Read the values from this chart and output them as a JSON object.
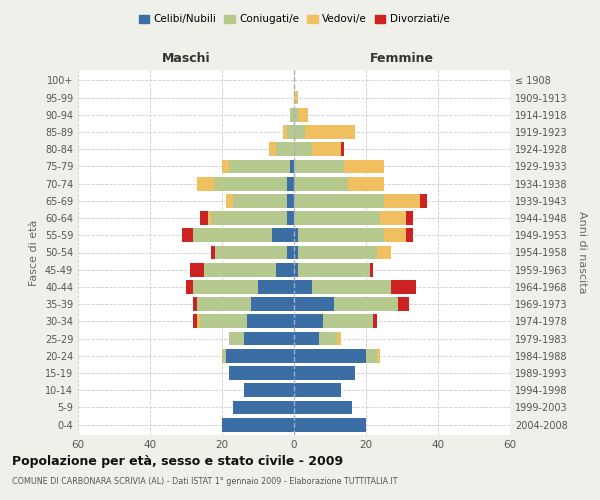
{
  "age_groups": [
    "0-4",
    "5-9",
    "10-14",
    "15-19",
    "20-24",
    "25-29",
    "30-34",
    "35-39",
    "40-44",
    "45-49",
    "50-54",
    "55-59",
    "60-64",
    "65-69",
    "70-74",
    "75-79",
    "80-84",
    "85-89",
    "90-94",
    "95-99",
    "100+"
  ],
  "birth_years": [
    "2004-2008",
    "1999-2003",
    "1994-1998",
    "1989-1993",
    "1984-1988",
    "1979-1983",
    "1974-1978",
    "1969-1973",
    "1964-1968",
    "1959-1963",
    "1954-1958",
    "1949-1953",
    "1944-1948",
    "1939-1943",
    "1934-1938",
    "1929-1933",
    "1924-1928",
    "1919-1923",
    "1914-1918",
    "1909-1913",
    "≤ 1908"
  ],
  "colors": {
    "celibi": "#3a6ea5",
    "coniugati": "#b5c98e",
    "vedovi": "#f0c060",
    "divorziati": "#cc2222"
  },
  "males": {
    "celibi": [
      20,
      17,
      14,
      18,
      19,
      14,
      13,
      12,
      10,
      5,
      2,
      6,
      2,
      2,
      2,
      1,
      0,
      0,
      0,
      0,
      0
    ],
    "coniugati": [
      0,
      0,
      0,
      0,
      1,
      4,
      13,
      15,
      18,
      20,
      20,
      22,
      21,
      15,
      20,
      17,
      5,
      2,
      1,
      0,
      0
    ],
    "vedovi": [
      0,
      0,
      0,
      0,
      0,
      0,
      1,
      0,
      0,
      0,
      0,
      0,
      1,
      2,
      5,
      2,
      2,
      1,
      0,
      0,
      0
    ],
    "divorziati": [
      0,
      0,
      0,
      0,
      0,
      0,
      1,
      1,
      2,
      4,
      1,
      3,
      2,
      0,
      0,
      0,
      0,
      0,
      0,
      0,
      0
    ]
  },
  "females": {
    "celibi": [
      20,
      16,
      13,
      17,
      20,
      7,
      8,
      11,
      5,
      1,
      1,
      1,
      0,
      0,
      0,
      0,
      0,
      0,
      0,
      0,
      0
    ],
    "coniugati": [
      0,
      0,
      0,
      0,
      3,
      5,
      14,
      18,
      22,
      20,
      22,
      24,
      24,
      25,
      15,
      14,
      5,
      3,
      1,
      0,
      0
    ],
    "vedovi": [
      0,
      0,
      0,
      0,
      1,
      1,
      0,
      0,
      0,
      0,
      4,
      6,
      7,
      10,
      10,
      11,
      8,
      14,
      3,
      1,
      0
    ],
    "divorziati": [
      0,
      0,
      0,
      0,
      0,
      0,
      1,
      3,
      7,
      1,
      0,
      2,
      2,
      2,
      0,
      0,
      1,
      0,
      0,
      0,
      0
    ]
  },
  "xlim": 60,
  "title": "Popolazione per età, sesso e stato civile - 2009",
  "subtitle": "COMUNE DI CARBONARA SCRIVIA (AL) - Dati ISTAT 1° gennaio 2009 - Elaborazione TUTTITALIA.IT",
  "ylabel_left": "Fasce di età",
  "ylabel_right": "Anni di nascita",
  "xlabel_male": "Maschi",
  "xlabel_female": "Femmine",
  "legend_labels": [
    "Celibi/Nubili",
    "Coniugati/e",
    "Vedovi/e",
    "Divorziati/e"
  ],
  "background_color": "#f0f0eb",
  "plot_background": "#ffffff",
  "header_male_color": "#333333",
  "header_female_color": "#333333"
}
